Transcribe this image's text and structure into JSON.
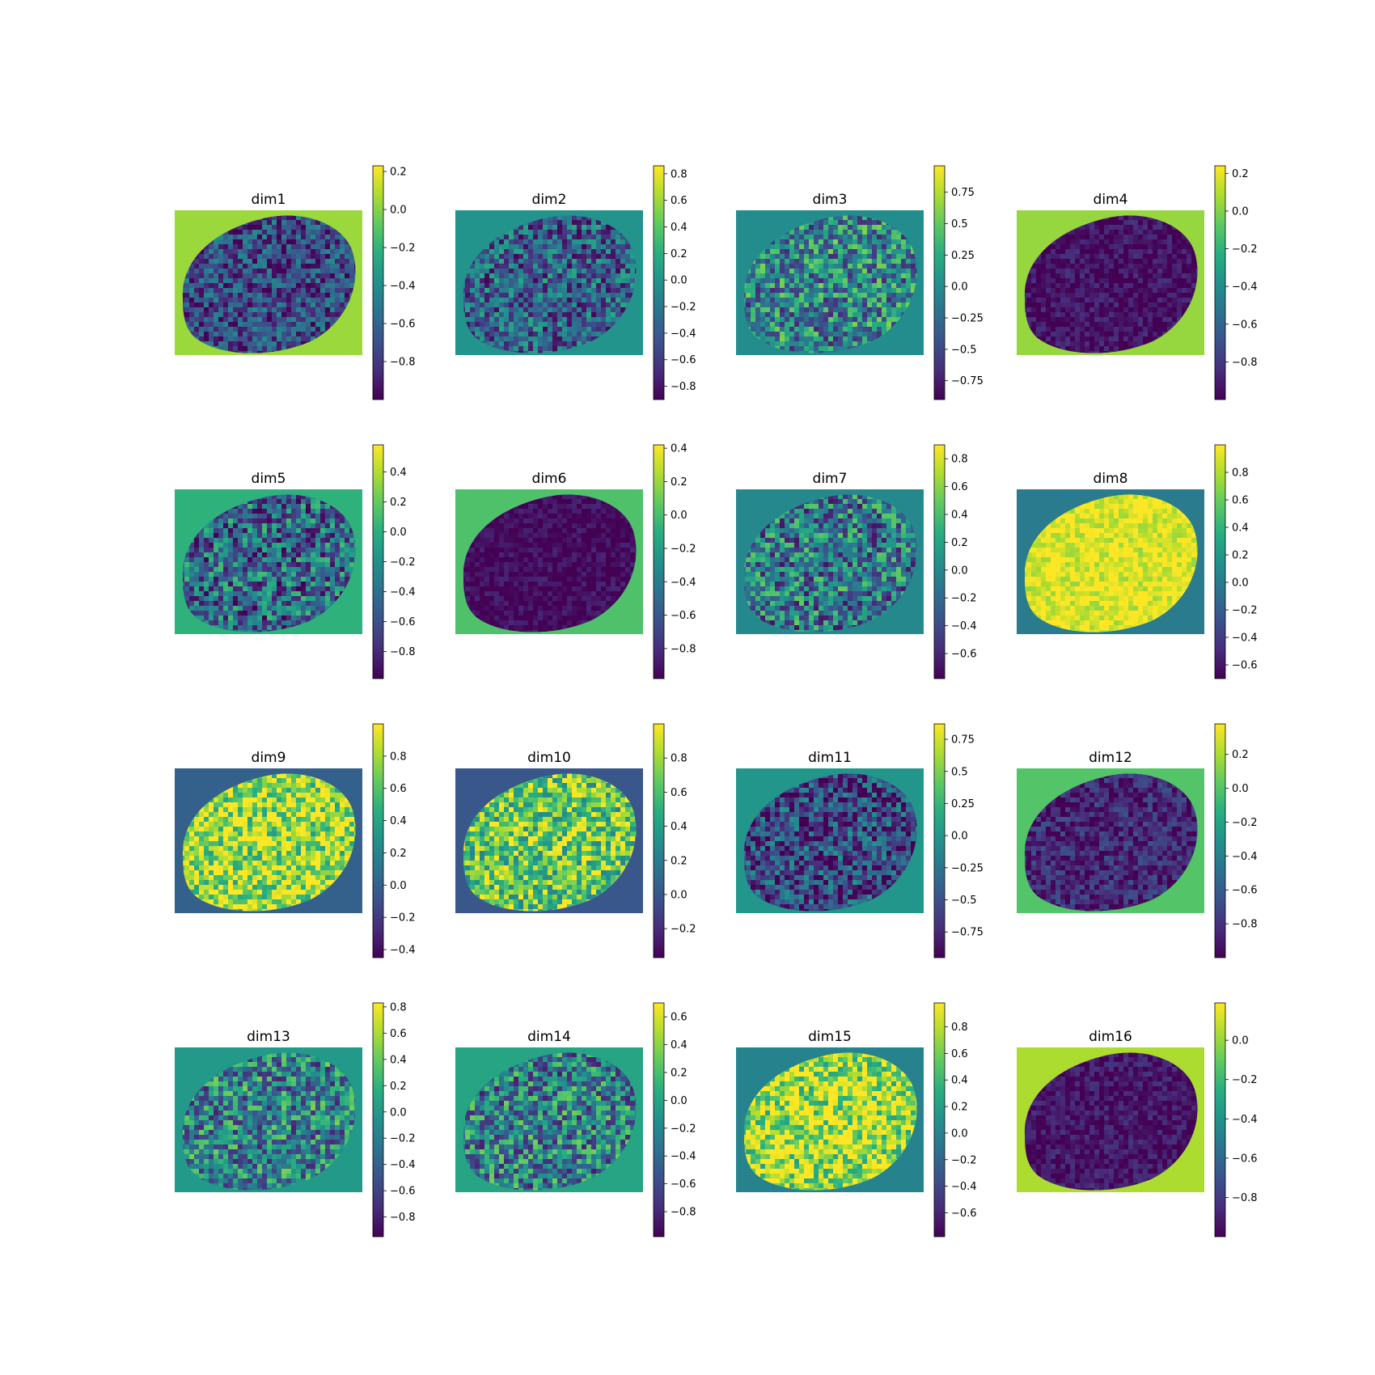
{
  "figure": {
    "colormap": "viridis",
    "layout": "4x4 grid of heatmaps with colorbars"
  },
  "chart_data": [
    {
      "type": "heatmap",
      "title": "dim1",
      "bg_value": 0.04,
      "tissue_mean": -0.72,
      "speckle": 0.25,
      "clim": [
        -1.0,
        0.23
      ],
      "ticks": [
        0.2,
        0.0,
        -0.2,
        -0.4,
        -0.6,
        -0.8
      ]
    },
    {
      "type": "heatmap",
      "title": "dim2",
      "bg_value": 0.0,
      "tissue_mean": -0.35,
      "speckle": 0.3,
      "clim": [
        -0.9,
        0.86
      ],
      "ticks": [
        0.8,
        0.6,
        0.4,
        0.2,
        0.0,
        -0.2,
        -0.4,
        -0.6,
        -0.8
      ]
    },
    {
      "type": "heatmap",
      "title": "dim3",
      "bg_value": 0.0,
      "tissue_mean": -0.05,
      "speckle": 0.35,
      "clim": [
        -0.9,
        0.96
      ],
      "ticks": [
        0.75,
        0.5,
        0.25,
        0.0,
        -0.25,
        -0.5,
        -0.75
      ]
    },
    {
      "type": "heatmap",
      "title": "dim4",
      "bg_value": 0.04,
      "tissue_mean": -0.94,
      "speckle": 0.1,
      "clim": [
        -1.0,
        0.24
      ],
      "ticks": [
        0.2,
        0.0,
        -0.2,
        -0.4,
        -0.6,
        -0.8
      ]
    },
    {
      "type": "heatmap",
      "title": "dim5",
      "bg_value": 0.02,
      "tissue_mean": -0.45,
      "speckle": 0.35,
      "clim": [
        -0.98,
        0.58
      ],
      "ticks": [
        0.4,
        0.2,
        0.0,
        -0.2,
        -0.4,
        -0.6,
        -0.8
      ]
    },
    {
      "type": "heatmap",
      "title": "dim6",
      "bg_value": 0.02,
      "tissue_mean": -0.94,
      "speckle": 0.08,
      "clim": [
        -0.98,
        0.42
      ],
      "ticks": [
        0.4,
        0.2,
        0.0,
        -0.2,
        -0.4,
        -0.6,
        -0.8
      ]
    },
    {
      "type": "heatmap",
      "title": "dim7",
      "bg_value": 0.0,
      "tissue_mean": -0.1,
      "speckle": 0.35,
      "clim": [
        -0.78,
        0.9
      ],
      "ticks": [
        0.8,
        0.6,
        0.4,
        0.2,
        0.0,
        -0.2,
        -0.4,
        -0.6
      ]
    },
    {
      "type": "heatmap",
      "title": "dim8",
      "bg_value": 0.0,
      "tissue_mean": 0.92,
      "speckle": 0.12,
      "clim": [
        -0.7,
        1.0
      ],
      "ticks": [
        0.8,
        0.6,
        0.4,
        0.2,
        0.0,
        -0.2,
        -0.4,
        -0.6
      ]
    },
    {
      "type": "heatmap",
      "title": "dim9",
      "bg_value": 0.0,
      "tissue_mean": 0.8,
      "speckle": 0.3,
      "clim": [
        -0.45,
        1.0
      ],
      "ticks": [
        0.8,
        0.6,
        0.4,
        0.2,
        0.0,
        -0.2,
        -0.4
      ]
    },
    {
      "type": "heatmap",
      "title": "dim10",
      "bg_value": 0.0,
      "tissue_mean": 0.65,
      "speckle": 0.3,
      "clim": [
        -0.37,
        1.0
      ],
      "ticks": [
        0.8,
        0.6,
        0.4,
        0.2,
        0.0,
        -0.2
      ]
    },
    {
      "type": "heatmap",
      "title": "dim11",
      "bg_value": 0.0,
      "tissue_mean": -0.55,
      "speckle": 0.3,
      "clim": [
        -0.95,
        0.87
      ],
      "ticks": [
        0.75,
        0.5,
        0.25,
        0.0,
        -0.25,
        -0.5,
        -0.75
      ]
    },
    {
      "type": "heatmap",
      "title": "dim12",
      "bg_value": 0.0,
      "tissue_mean": -0.85,
      "speckle": 0.15,
      "clim": [
        -1.0,
        0.38
      ],
      "ticks": [
        0.2,
        0.0,
        -0.2,
        -0.4,
        -0.6,
        -0.8
      ]
    },
    {
      "type": "heatmap",
      "title": "dim13",
      "bg_value": 0.0,
      "tissue_mean": -0.15,
      "speckle": 0.35,
      "clim": [
        -0.95,
        0.83
      ],
      "ticks": [
        0.8,
        0.6,
        0.4,
        0.2,
        0.0,
        -0.2,
        -0.4,
        -0.6,
        -0.8
      ]
    },
    {
      "type": "heatmap",
      "title": "dim14",
      "bg_value": 0.0,
      "tissue_mean": -0.25,
      "speckle": 0.35,
      "clim": [
        -0.98,
        0.7
      ],
      "ticks": [
        0.6,
        0.4,
        0.2,
        0.0,
        -0.2,
        -0.4,
        -0.6,
        -0.8
      ]
    },
    {
      "type": "heatmap",
      "title": "dim15",
      "bg_value": 0.0,
      "tissue_mean": 0.75,
      "speckle": 0.3,
      "clim": [
        -0.78,
        0.98
      ],
      "ticks": [
        0.8,
        0.6,
        0.4,
        0.2,
        0.0,
        -0.2,
        -0.4,
        -0.6
      ]
    },
    {
      "type": "heatmap",
      "title": "dim16",
      "bg_value": 0.04,
      "tissue_mean": -0.93,
      "speckle": 0.1,
      "clim": [
        -1.0,
        0.19
      ],
      "ticks": [
        0.0,
        -0.2,
        -0.4,
        -0.6,
        -0.8
      ]
    }
  ]
}
